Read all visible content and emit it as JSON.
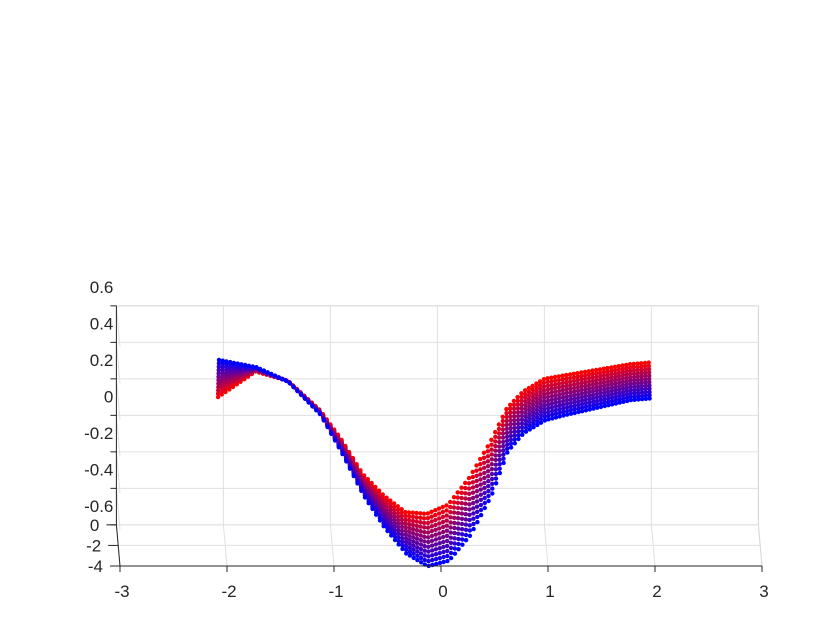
{
  "chart_data": {
    "type": "scatter",
    "projection": "3d",
    "title": "",
    "xlabel": "",
    "ylabel": "",
    "zlabel": "",
    "grid": true,
    "xlim": [
      -3,
      3
    ],
    "ylim": [
      -4,
      0
    ],
    "zlim": [
      -0.6,
      0.6
    ],
    "x_ticks": [
      "-3",
      "-2",
      "-1",
      "0",
      "1",
      "2",
      "3"
    ],
    "y_ticks": [
      "0",
      "-2",
      "-4"
    ],
    "z_ticks": [
      "0.6",
      "0.4",
      "0.2",
      "0",
      "-0.2",
      "-0.4",
      "-0.6"
    ],
    "colormap": {
      "near": "#ff0000",
      "far": "#0000ff"
    },
    "series_profile": {
      "x": [
        -2.05,
        -1.7,
        -1.4,
        -1.1,
        -0.9,
        -0.7,
        -0.5,
        -0.3,
        -0.1,
        0.1,
        0.3,
        0.5,
        0.65,
        0.8,
        1.0,
        1.2,
        1.5,
        1.8,
        2.0
      ],
      "z_front": [
        0.1,
        0.24,
        0.19,
        0.03,
        -0.13,
        -0.32,
        -0.44,
        -0.53,
        -0.54,
        -0.49,
        -0.34,
        -0.14,
        0.04,
        0.13,
        0.2,
        0.22,
        0.25,
        0.28,
        0.29
      ],
      "z_back": [
        0.36,
        0.32,
        0.24,
        0.06,
        -0.15,
        -0.38,
        -0.56,
        -0.7,
        -0.77,
        -0.74,
        -0.6,
        -0.38,
        -0.14,
        -0.04,
        0.03,
        0.06,
        0.1,
        0.14,
        0.15
      ]
    },
    "series_count": 12
  }
}
